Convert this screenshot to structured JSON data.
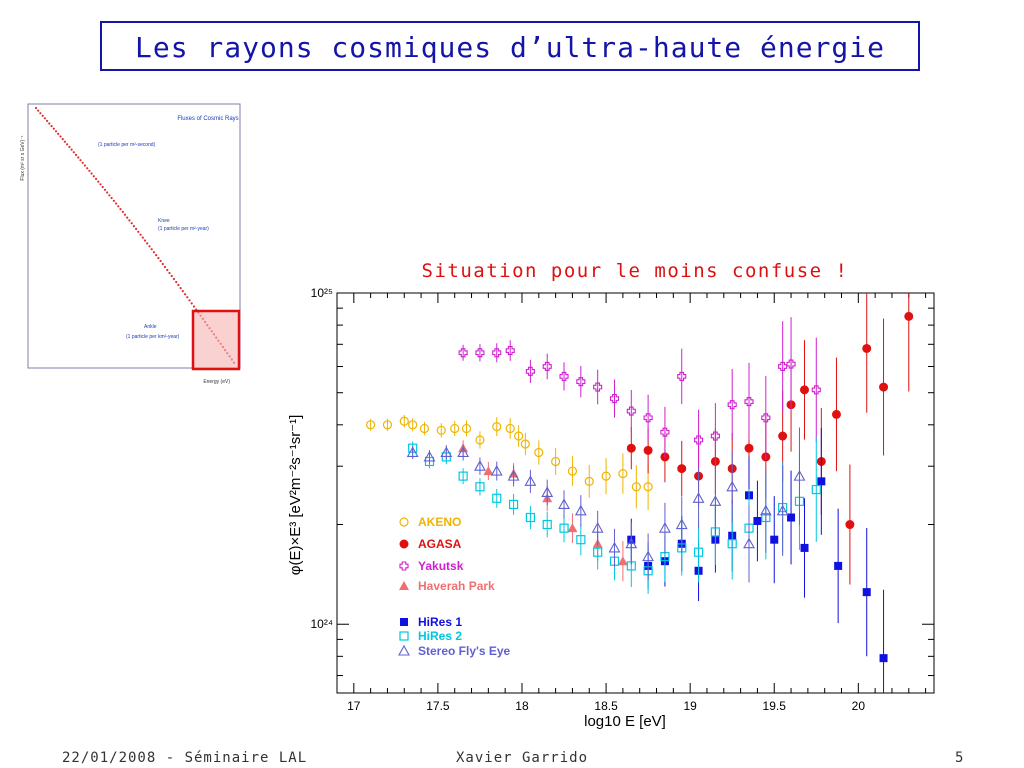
{
  "slide": {
    "title": "Les rayons cosmiques d’ultra-haute énergie",
    "subtitle": "Situation pour le moins confuse !",
    "footer_left": "22/01/2008 - Séminaire LAL",
    "footer_center": "Xavier Garrido",
    "footer_right": "5"
  },
  "thumbnail": {
    "title": "Fluxes of Cosmic Rays",
    "ann1": "(1 particle per m²-second)",
    "ann2a": "Knee",
    "ann2b": "(1 particle per m²-year)",
    "ann3a": "Ankle",
    "ann3b": "(1 particle per km²-year)",
    "ylabel": "Flux (m² sr s GeV)⁻¹",
    "xlabel": "Energy (eV)",
    "highlight_color": "#e01010"
  },
  "chart_data": {
    "type": "scatter",
    "xlabel": "log10 E [eV]",
    "ylabel": "φ(E)×E³ [eV²m⁻²s⁻¹sr⁻¹]",
    "xlim": [
      16.9,
      20.45
    ],
    "ylim": [
      6.2e+23,
      1e+25
    ],
    "yscale": "log",
    "xticks": [
      17,
      17.5,
      18,
      18.5,
      19,
      19.5,
      20
    ],
    "xtick_labels": [
      "17",
      "17.5",
      "18",
      "18.5",
      "19",
      "19.5",
      "20"
    ],
    "ytick_labels": [
      "10²⁴",
      "10²⁵"
    ],
    "legend_position": "lower-left",
    "series": [
      {
        "name": "AKENO",
        "color": "#f0b400",
        "marker": "circle-open",
        "x": [
          17.1,
          17.2,
          17.3,
          17.35,
          17.42,
          17.52,
          17.6,
          17.67,
          17.75,
          17.85,
          17.93,
          17.98,
          18.02,
          18.1,
          18.2,
          18.3,
          18.4,
          18.5,
          18.6,
          18.68,
          18.75
        ],
        "y": [
          4e+24,
          4e+24,
          4.1e+24,
          4e+24,
          3.9e+24,
          3.85e+24,
          3.9e+24,
          3.9e+24,
          3.6e+24,
          3.95e+24,
          3.9e+24,
          3.7e+24,
          3.5e+24,
          3.3e+24,
          3.1e+24,
          2.9e+24,
          2.7e+24,
          2.8e+24,
          2.85e+24,
          2.6e+24,
          2.6e+24
        ]
      },
      {
        "name": "AGASA",
        "color": "#e01010",
        "marker": "circle-filled",
        "x": [
          18.65,
          18.75,
          18.85,
          18.95,
          19.05,
          19.15,
          19.25,
          19.35,
          19.45,
          19.55,
          19.6,
          19.68,
          19.78,
          19.87,
          19.95,
          20.05,
          20.15,
          20.3
        ],
        "y": [
          3.4e+24,
          3.35e+24,
          3.2e+24,
          2.95e+24,
          2.8e+24,
          3.1e+24,
          2.95e+24,
          3.4e+24,
          3.2e+24,
          3.7e+24,
          4.6e+24,
          5.1e+24,
          3.1e+24,
          4.3e+24,
          2e+24,
          6.8e+24,
          5.2e+24,
          8.5e+24
        ]
      },
      {
        "name": "Yakutsk",
        "color": "#d020d0",
        "marker": "cross-open",
        "x": [
          17.65,
          17.75,
          17.85,
          17.93,
          18.05,
          18.15,
          18.25,
          18.35,
          18.45,
          18.55,
          18.65,
          18.75,
          18.85,
          18.95,
          19.05,
          19.15,
          19.25,
          19.35,
          19.45,
          19.55,
          19.6,
          19.75
        ],
        "y": [
          6.6e+24,
          6.6e+24,
          6.6e+24,
          6.7e+24,
          5.8e+24,
          6e+24,
          5.6e+24,
          5.4e+24,
          5.2e+24,
          4.8e+24,
          4.4e+24,
          4.2e+24,
          3.8e+24,
          5.6e+24,
          3.6e+24,
          3.7e+24,
          4.6e+24,
          4.7e+24,
          4.2e+24,
          6e+24,
          6.1e+24,
          5.1e+24
        ]
      },
      {
        "name": "Haverah Park",
        "color": "#f07070",
        "marker": "triangle-filled",
        "x": [
          17.65,
          17.8,
          17.95,
          18.15,
          18.3,
          18.45,
          18.6
        ],
        "y": [
          3.4e+24,
          2.9e+24,
          2.85e+24,
          2.4e+24,
          1.95e+24,
          1.75e+24,
          1.55e+24
        ]
      },
      {
        "name": "HiRes 1",
        "color": "#1010e0",
        "marker": "square-filled",
        "x": [
          18.65,
          18.75,
          18.85,
          18.95,
          19.05,
          19.15,
          19.25,
          19.35,
          19.4,
          19.5,
          19.6,
          19.68,
          19.78,
          19.88,
          20.05,
          20.15
        ],
        "y": [
          1.8e+24,
          1.5e+24,
          1.55e+24,
          1.75e+24,
          1.45e+24,
          1.8e+24,
          1.85e+24,
          2.45e+24,
          2.05e+24,
          1.8e+24,
          2.1e+24,
          1.7e+24,
          2.7e+24,
          1.5e+24,
          1.25e+24,
          7.9e+23
        ]
      },
      {
        "name": "HiRes 2",
        "color": "#00c8e0",
        "marker": "square-open",
        "x": [
          17.35,
          17.45,
          17.55,
          17.65,
          17.75,
          17.85,
          17.95,
          18.05,
          18.15,
          18.25,
          18.35,
          18.45,
          18.55,
          18.65,
          18.75,
          18.85,
          18.95,
          19.05,
          19.15,
          19.25,
          19.35,
          19.45,
          19.55,
          19.65,
          19.75
        ],
        "y": [
          3.4e+24,
          3.1e+24,
          3.2e+24,
          2.8e+24,
          2.6e+24,
          2.4e+24,
          2.3e+24,
          2.1e+24,
          2e+24,
          1.95e+24,
          1.8e+24,
          1.65e+24,
          1.55e+24,
          1.5e+24,
          1.45e+24,
          1.6e+24,
          1.7e+24,
          1.65e+24,
          1.9e+24,
          1.75e+24,
          1.95e+24,
          2.1e+24,
          2.25e+24,
          2.35e+24,
          2.55e+24
        ]
      },
      {
        "name": "Stereo Fly's Eye",
        "color": "#6060d0",
        "marker": "triangle-open",
        "x": [
          17.35,
          17.45,
          17.55,
          17.65,
          17.75,
          17.85,
          17.95,
          18.05,
          18.15,
          18.25,
          18.35,
          18.45,
          18.55,
          18.65,
          18.75,
          18.85,
          18.95,
          19.05,
          19.15,
          19.25,
          19.35,
          19.45,
          19.55,
          19.65
        ],
        "y": [
          3.3e+24,
          3.2e+24,
          3.3e+24,
          3.3e+24,
          3e+24,
          2.9e+24,
          2.8e+24,
          2.7e+24,
          2.5e+24,
          2.3e+24,
          2.2e+24,
          1.95e+24,
          1.7e+24,
          1.75e+24,
          1.6e+24,
          1.95e+24,
          2e+24,
          2.4e+24,
          2.35e+24,
          2.6e+24,
          1.75e+24,
          2.2e+24,
          2.2e+24,
          2.8e+24
        ]
      }
    ]
  }
}
